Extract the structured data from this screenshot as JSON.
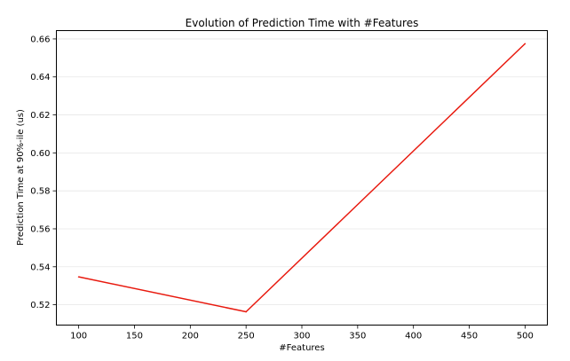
{
  "chart_data": {
    "type": "line",
    "title": "Evolution of Prediction Time with #Features",
    "xlabel": "#Features",
    "ylabel": "Prediction Time at 90%-ile (us)",
    "x_ticks": [
      100,
      150,
      200,
      250,
      300,
      350,
      400,
      450,
      500
    ],
    "y_ticks": [
      0.52,
      0.54,
      0.56,
      0.58,
      0.6,
      0.62,
      0.64,
      0.66
    ],
    "y_tick_labels": [
      "0.52",
      "0.54",
      "0.56",
      "0.58",
      "0.60",
      "0.62",
      "0.64",
      "0.66"
    ],
    "xlim": [
      80,
      520
    ],
    "ylim": [
      0.5093,
      0.6644
    ],
    "grid": "horizontal",
    "series": [
      {
        "color": "#e8190e",
        "x": [
          100,
          250,
          500
        ],
        "y": [
          0.5347,
          0.5163,
          0.6575
        ]
      }
    ]
  }
}
